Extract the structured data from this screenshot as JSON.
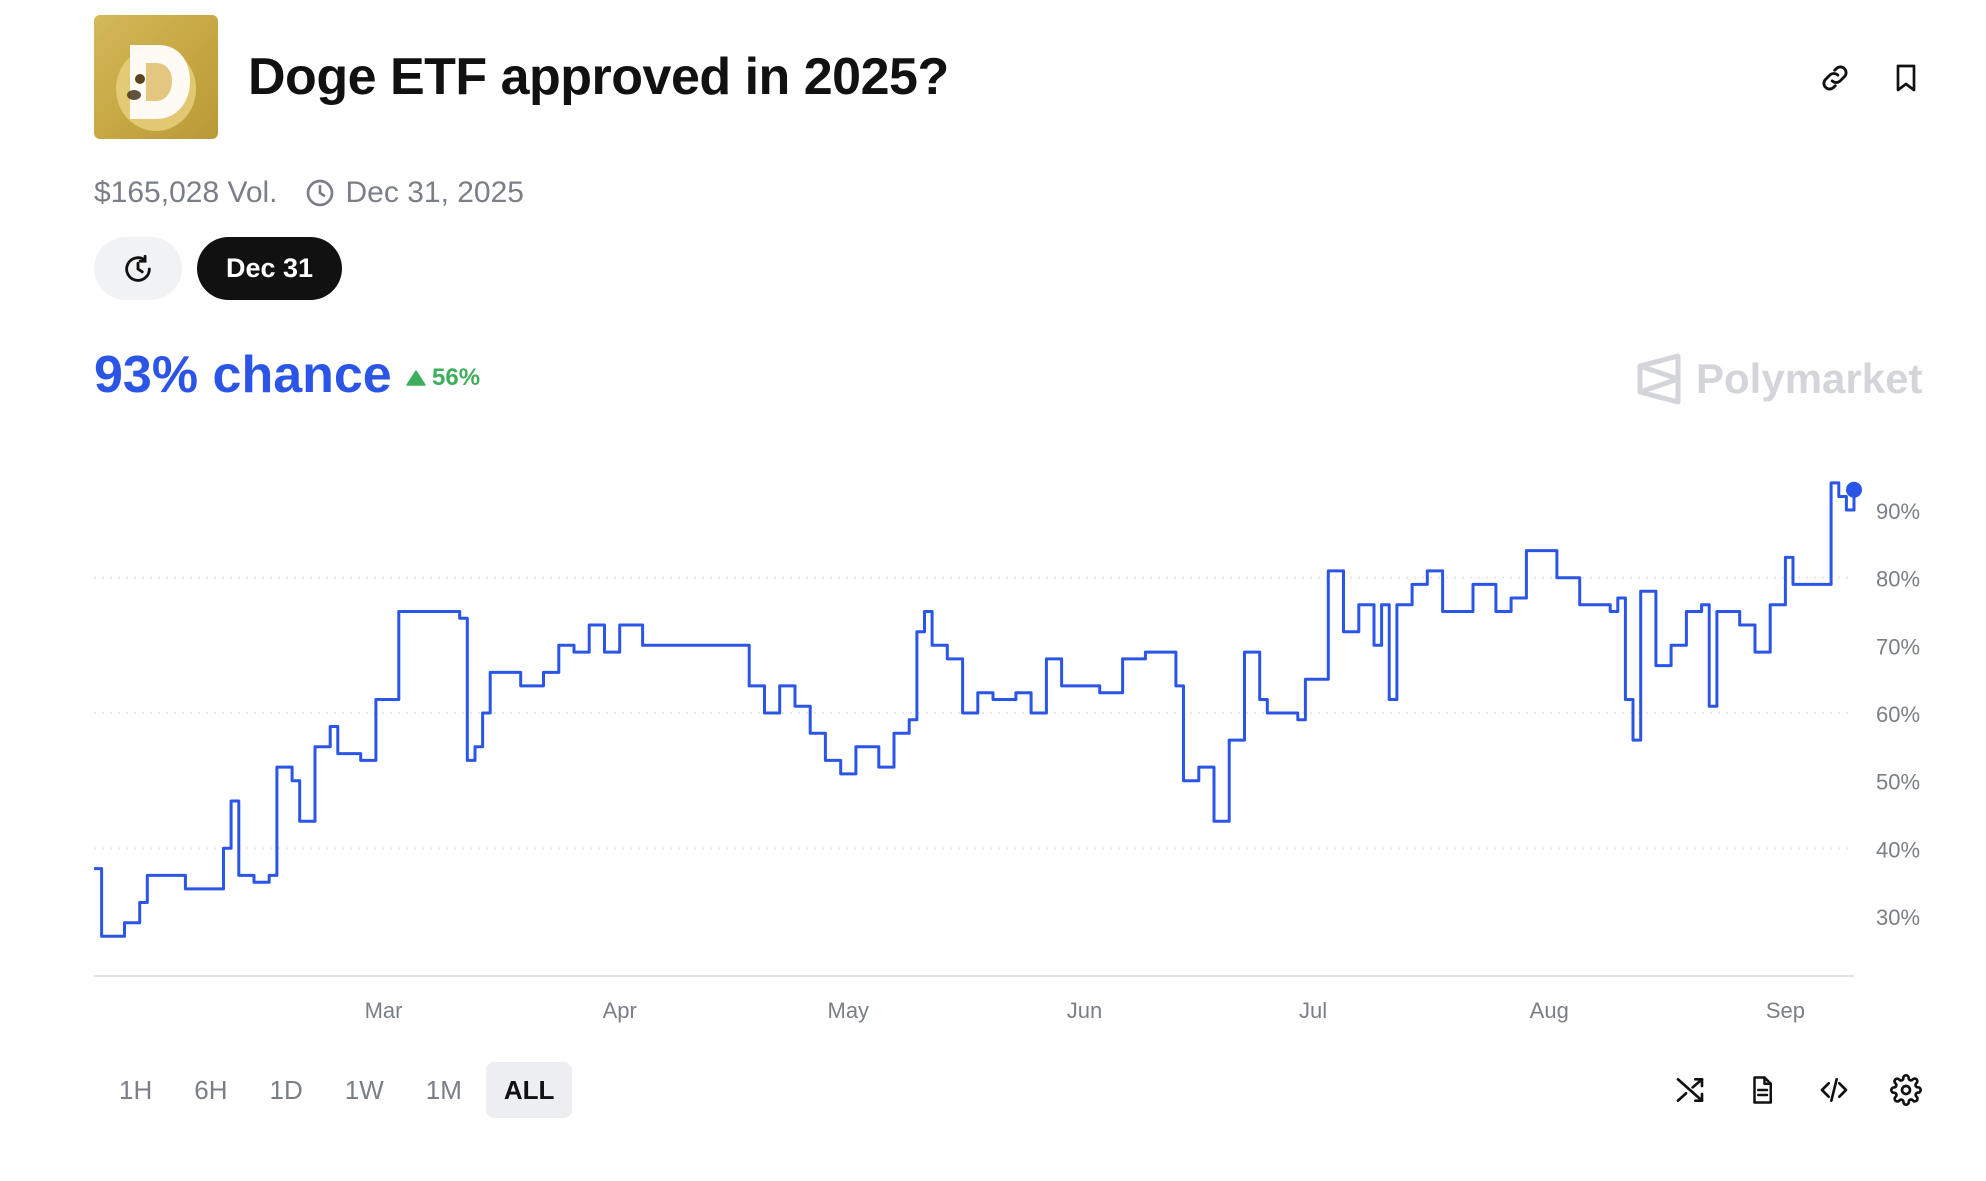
{
  "market": {
    "title": "Doge ETF approved in 2025?",
    "volume": "$165,028 Vol.",
    "end_date": "Dec 31, 2025"
  },
  "date_pill": "Dec 31",
  "chance": {
    "value": "93% chance",
    "change": "56%"
  },
  "brand": "Polymarket",
  "ranges": [
    "1H",
    "6H",
    "1D",
    "1W",
    "1M",
    "ALL"
  ],
  "active_range": "ALL",
  "colors": {
    "line": "#2b55e6",
    "up": "#3fae5c",
    "logo_gold": "#c4a540"
  },
  "icons": [
    "link-icon",
    "bookmark-icon",
    "clock-icon",
    "history-icon",
    "shuffle-icon",
    "document-icon",
    "code-icon",
    "gear-icon"
  ],
  "chart_data": {
    "type": "line",
    "x_labels": [
      "Mar",
      "Apr",
      "May",
      "Jun",
      "Jul",
      "Aug",
      "Sep"
    ],
    "y_tick_labels": [
      "90%",
      "80%",
      "70%",
      "60%",
      "50%",
      "40%",
      "30%"
    ],
    "y_ticks": [
      90,
      80,
      70,
      60,
      50,
      40,
      30
    ],
    "ylim": [
      20,
      95
    ],
    "gridlines": [
      40,
      60,
      80
    ],
    "x_range": [
      "2025-01-22",
      "2025-09-10"
    ],
    "series": [
      {
        "points": [
          [
            "2025-01-22",
            37
          ],
          [
            "2025-01-23",
            27
          ],
          [
            "2025-01-25",
            27
          ],
          [
            "2025-01-26",
            29
          ],
          [
            "2025-01-28",
            32
          ],
          [
            "2025-01-29",
            36
          ],
          [
            "2025-02-01",
            36
          ],
          [
            "2025-02-03",
            34
          ],
          [
            "2025-02-06",
            34
          ],
          [
            "2025-02-08",
            40
          ],
          [
            "2025-02-09",
            47
          ],
          [
            "2025-02-10",
            36
          ],
          [
            "2025-02-12",
            35
          ],
          [
            "2025-02-14",
            36
          ],
          [
            "2025-02-15",
            52
          ],
          [
            "2025-02-17",
            50
          ],
          [
            "2025-02-18",
            44
          ],
          [
            "2025-02-20",
            55
          ],
          [
            "2025-02-22",
            58
          ],
          [
            "2025-02-23",
            54
          ],
          [
            "2025-02-26",
            53
          ],
          [
            "2025-02-28",
            62
          ],
          [
            "2025-03-01",
            62
          ],
          [
            "2025-03-03",
            75
          ],
          [
            "2025-03-08",
            75
          ],
          [
            "2025-03-11",
            74
          ],
          [
            "2025-03-12",
            53
          ],
          [
            "2025-03-13",
            55
          ],
          [
            "2025-03-14",
            60
          ],
          [
            "2025-03-15",
            66
          ],
          [
            "2025-03-18",
            66
          ],
          [
            "2025-03-19",
            64
          ],
          [
            "2025-03-22",
            66
          ],
          [
            "2025-03-24",
            70
          ],
          [
            "2025-03-26",
            69
          ],
          [
            "2025-03-28",
            73
          ],
          [
            "2025-03-30",
            69
          ],
          [
            "2025-04-01",
            73
          ],
          [
            "2025-04-04",
            70
          ],
          [
            "2025-04-12",
            70
          ],
          [
            "2025-04-17",
            70
          ],
          [
            "2025-04-18",
            64
          ],
          [
            "2025-04-20",
            60
          ],
          [
            "2025-04-22",
            64
          ],
          [
            "2025-04-24",
            61
          ],
          [
            "2025-04-26",
            57
          ],
          [
            "2025-04-28",
            53
          ],
          [
            "2025-04-30",
            51
          ],
          [
            "2025-05-02",
            55
          ],
          [
            "2025-05-05",
            52
          ],
          [
            "2025-05-07",
            57
          ],
          [
            "2025-05-09",
            59
          ],
          [
            "2025-05-10",
            72
          ],
          [
            "2025-05-11",
            75
          ],
          [
            "2025-05-12",
            70
          ],
          [
            "2025-05-14",
            68
          ],
          [
            "2025-05-16",
            60
          ],
          [
            "2025-05-18",
            63
          ],
          [
            "2025-05-20",
            62
          ],
          [
            "2025-05-23",
            63
          ],
          [
            "2025-05-25",
            60
          ],
          [
            "2025-05-27",
            68
          ],
          [
            "2025-05-29",
            64
          ],
          [
            "2025-06-03",
            63
          ],
          [
            "2025-06-06",
            68
          ],
          [
            "2025-06-09",
            69
          ],
          [
            "2025-06-12",
            69
          ],
          [
            "2025-06-13",
            64
          ],
          [
            "2025-06-14",
            50
          ],
          [
            "2025-06-16",
            52
          ],
          [
            "2025-06-18",
            44
          ],
          [
            "2025-06-19",
            44
          ],
          [
            "2025-06-20",
            56
          ],
          [
            "2025-06-22",
            69
          ],
          [
            "2025-06-24",
            62
          ],
          [
            "2025-06-25",
            60
          ],
          [
            "2025-06-29",
            59
          ],
          [
            "2025-06-30",
            65
          ],
          [
            "2025-07-01",
            65
          ],
          [
            "2025-07-03",
            81
          ],
          [
            "2025-07-05",
            72
          ],
          [
            "2025-07-07",
            76
          ],
          [
            "2025-07-09",
            70
          ],
          [
            "2025-07-10",
            76
          ],
          [
            "2025-07-11",
            62
          ],
          [
            "2025-07-12",
            76
          ],
          [
            "2025-07-14",
            79
          ],
          [
            "2025-07-16",
            81
          ],
          [
            "2025-07-18",
            75
          ],
          [
            "2025-07-22",
            79
          ],
          [
            "2025-07-25",
            75
          ],
          [
            "2025-07-27",
            77
          ],
          [
            "2025-07-29",
            84
          ],
          [
            "2025-08-01",
            84
          ],
          [
            "2025-08-02",
            80
          ],
          [
            "2025-08-04",
            80
          ],
          [
            "2025-08-05",
            76
          ],
          [
            "2025-08-09",
            75
          ],
          [
            "2025-08-10",
            77
          ],
          [
            "2025-08-11",
            62
          ],
          [
            "2025-08-12",
            56
          ],
          [
            "2025-08-13",
            78
          ],
          [
            "2025-08-15",
            67
          ],
          [
            "2025-08-17",
            70
          ],
          [
            "2025-08-19",
            75
          ],
          [
            "2025-08-21",
            76
          ],
          [
            "2025-08-22",
            61
          ],
          [
            "2025-08-23",
            75
          ],
          [
            "2025-08-26",
            73
          ],
          [
            "2025-08-28",
            69
          ],
          [
            "2025-08-30",
            76
          ],
          [
            "2025-09-01",
            83
          ],
          [
            "2025-09-02",
            79
          ],
          [
            "2025-09-04",
            79
          ],
          [
            "2025-09-06",
            79
          ],
          [
            "2025-09-07",
            94
          ],
          [
            "2025-09-08",
            92
          ],
          [
            "2025-09-09",
            90
          ],
          [
            "2025-09-10",
            93
          ]
        ]
      }
    ]
  }
}
